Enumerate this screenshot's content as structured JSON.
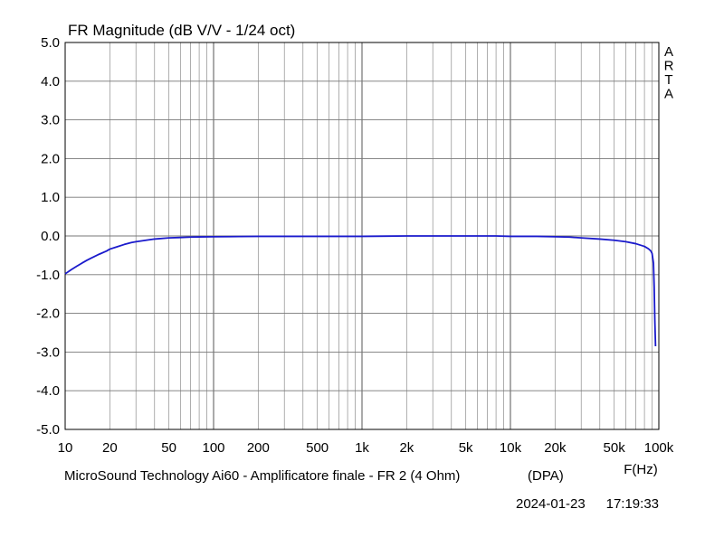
{
  "chart_data": {
    "type": "line",
    "title": "FR Magnitude (dB V/V - 1/24 oct)",
    "xlabel": "F(Hz)",
    "ylabel": "",
    "x_scale": "log",
    "xlim": [
      10,
      100000
    ],
    "ylim": [
      -5.0,
      5.0
    ],
    "grid": true,
    "x_ticks": [
      10,
      20,
      50,
      100,
      200,
      500,
      1000,
      2000,
      5000,
      10000,
      20000,
      50000,
      100000
    ],
    "x_tick_labels": [
      "10",
      "20",
      "50",
      "100",
      "200",
      "500",
      "1k",
      "2k",
      "5k",
      "10k",
      "20k",
      "50k",
      "100k"
    ],
    "y_ticks": [
      5,
      4,
      3,
      2,
      1,
      0,
      -1,
      -2,
      -3,
      -4,
      -5
    ],
    "y_tick_labels": [
      "5.0",
      "4.0",
      "3.0",
      "2.0",
      "1.0",
      "0.0",
      "-1.0",
      "-2.0",
      "-3.0",
      "-4.0",
      "-5.0"
    ],
    "series": [
      {
        "color": "#1a1acc",
        "x": [
          10,
          11,
          12,
          13,
          14,
          15,
          17,
          19,
          20,
          22,
          25,
          28,
          30,
          35,
          40,
          50,
          60,
          70,
          80,
          100,
          150,
          200,
          300,
          500,
          700,
          1000,
          1500,
          2000,
          3000,
          5000,
          7000,
          8000,
          10000,
          15000,
          20000,
          25000,
          30000,
          40000,
          50000,
          60000,
          70000,
          80000,
          85000,
          88000,
          90000,
          92000,
          93000,
          94000,
          95000
        ],
        "y": [
          -0.98,
          -0.87,
          -0.78,
          -0.7,
          -0.63,
          -0.57,
          -0.47,
          -0.39,
          -0.34,
          -0.29,
          -0.22,
          -0.17,
          -0.15,
          -0.11,
          -0.08,
          -0.05,
          -0.04,
          -0.03,
          -0.025,
          -0.02,
          -0.015,
          -0.01,
          -0.01,
          -0.01,
          -0.01,
          -0.01,
          -0.005,
          0.0,
          0.0,
          0.0,
          0.0,
          0.0,
          -0.01,
          -0.01,
          -0.02,
          -0.03,
          -0.05,
          -0.08,
          -0.11,
          -0.15,
          -0.2,
          -0.27,
          -0.33,
          -0.38,
          -0.45,
          -0.7,
          -1.3,
          -2.2,
          -2.85
        ]
      }
    ]
  },
  "brand": {
    "letters": [
      "A",
      "R",
      "T",
      "A"
    ]
  },
  "footer": {
    "description": "MicroSound Technology Ai60 - Amplificatore finale - FR 2 (4 Ohm)",
    "tag": "(DPA)",
    "date": "2024-01-23",
    "time": "17:19:33"
  }
}
